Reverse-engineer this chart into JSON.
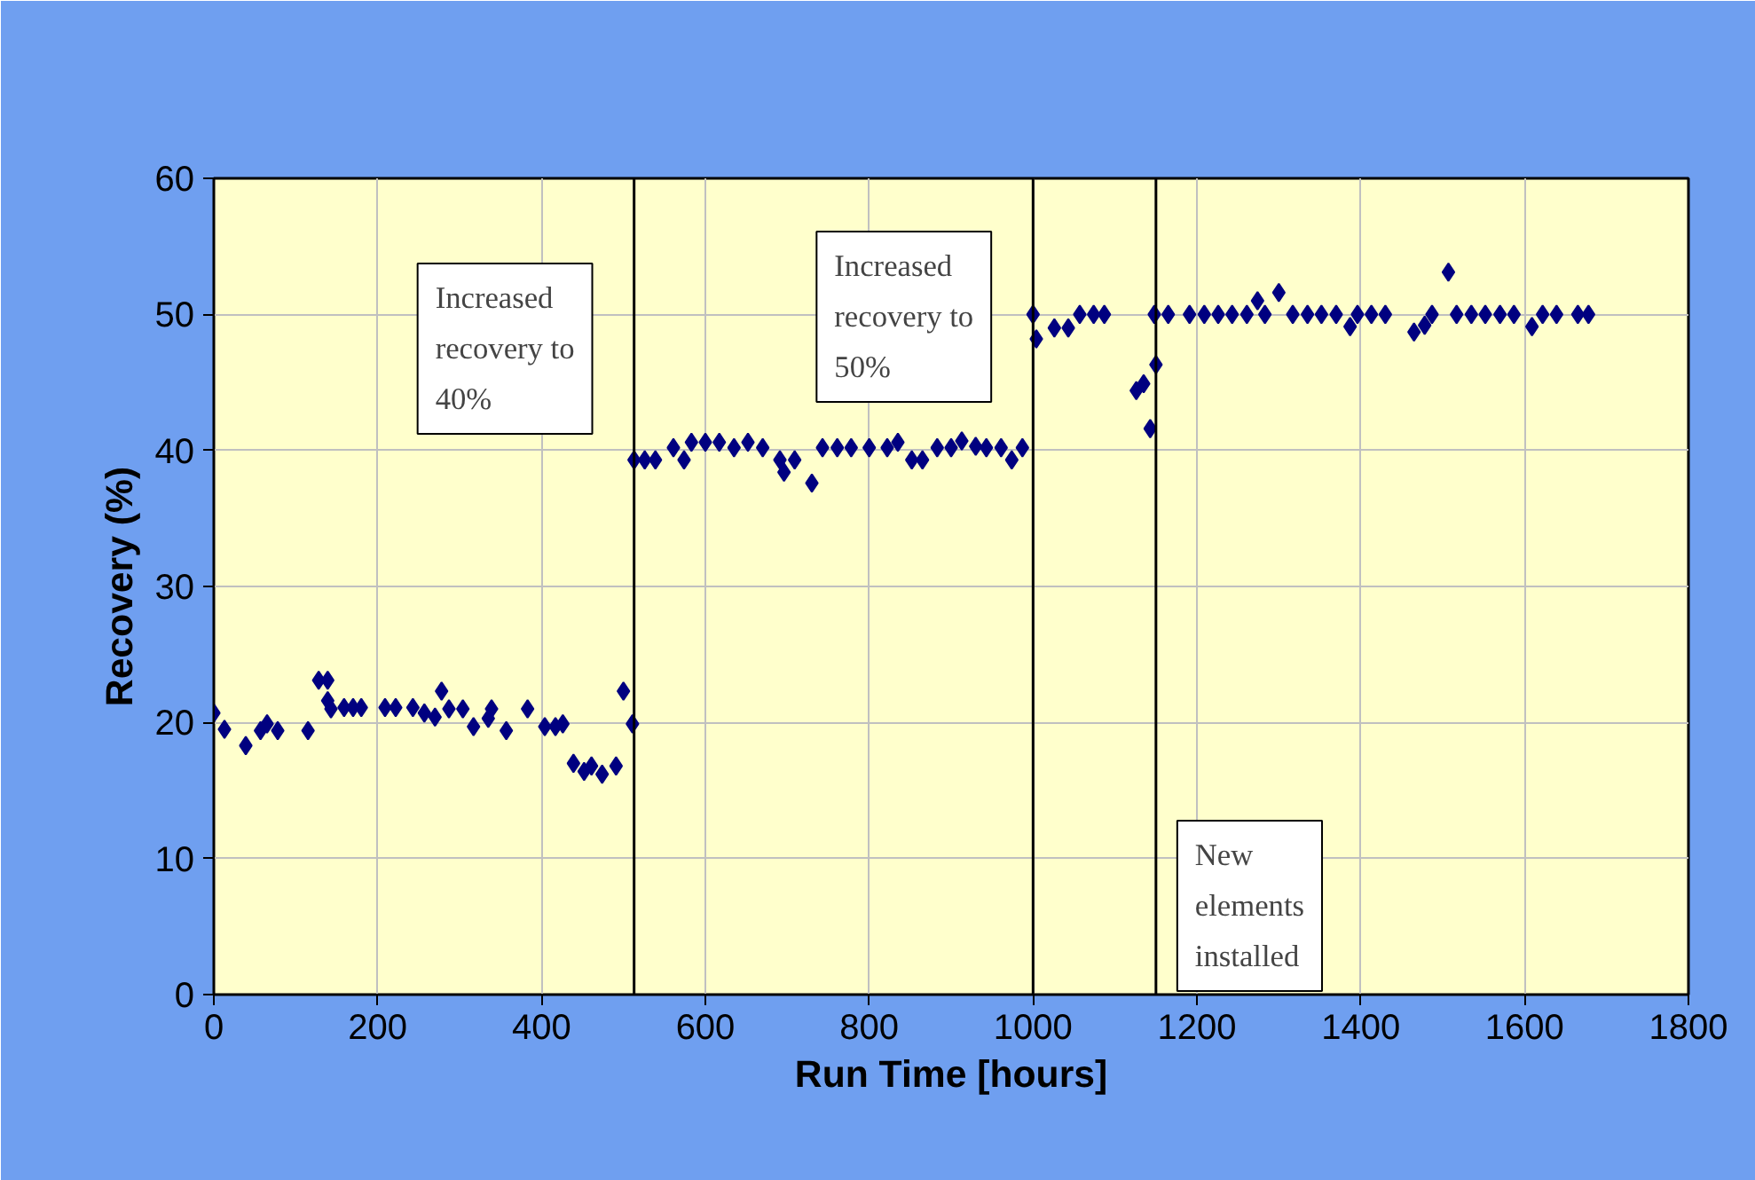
{
  "chart_data": {
    "type": "scatter",
    "xlabel": "Run Time [hours]",
    "ylabel": "Recovery (%)",
    "xlim": [
      0,
      1800
    ],
    "xticks": [
      0,
      200,
      400,
      600,
      800,
      1000,
      1200,
      1400,
      1600,
      1800
    ],
    "ylim": [
      0,
      60
    ],
    "yticks": [
      0,
      10,
      20,
      30,
      40,
      50,
      60
    ],
    "grid": true,
    "marker": "diamond",
    "series": [
      {
        "color": "#000080",
        "x": [
          0,
          13,
          39,
          57,
          65,
          78,
          115,
          128,
          139,
          139,
          143,
          159,
          170,
          180,
          209,
          222,
          243,
          257,
          270,
          278,
          287,
          304,
          317,
          335,
          339,
          357,
          383,
          404,
          417,
          426,
          439,
          452,
          461,
          474,
          491,
          500,
          511,
          513,
          526,
          539,
          561,
          574,
          583,
          600,
          617,
          635,
          652,
          670,
          691,
          696,
          709,
          730,
          743,
          761,
          778,
          800,
          822,
          835,
          852,
          865,
          883,
          900,
          913,
          930,
          943,
          961,
          974,
          987,
          1000,
          1004,
          1026,
          1043,
          1057,
          1074,
          1087,
          1126,
          1135,
          1143,
          1148,
          1150,
          1165,
          1191,
          1209,
          1226,
          1243,
          1261,
          1274,
          1283,
          1300,
          1317,
          1335,
          1352,
          1370,
          1387,
          1396,
          1413,
          1430,
          1465,
          1478,
          1487,
          1507,
          1517,
          1535,
          1552,
          1570,
          1587,
          1609,
          1622,
          1639,
          1665,
          1678
        ],
        "values": [
          20.7,
          19.5,
          18.3,
          19.4,
          19.9,
          19.4,
          19.4,
          23.1,
          23.1,
          21.6,
          21.0,
          21.1,
          21.1,
          21.1,
          21.1,
          21.1,
          21.1,
          20.7,
          20.4,
          22.3,
          21.0,
          21.0,
          19.7,
          20.3,
          21.0,
          19.4,
          21.0,
          19.7,
          19.7,
          19.9,
          17.0,
          16.4,
          16.8,
          16.2,
          16.8,
          22.3,
          19.9,
          39.3,
          39.3,
          39.3,
          40.2,
          39.3,
          40.6,
          40.6,
          40.6,
          40.2,
          40.6,
          40.2,
          39.3,
          38.4,
          39.3,
          37.6,
          40.2,
          40.2,
          40.2,
          40.2,
          40.2,
          40.6,
          39.3,
          39.3,
          40.2,
          40.2,
          40.7,
          40.3,
          40.2,
          40.2,
          39.3,
          40.2,
          50.0,
          48.2,
          49.0,
          49.0,
          50.0,
          50.0,
          50.0,
          44.4,
          44.9,
          41.6,
          50.0,
          46.3,
          50.0,
          50.0,
          50.0,
          50.0,
          50.0,
          50.0,
          51.0,
          50.0,
          51.6,
          50.0,
          50.0,
          50.0,
          50.0,
          49.1,
          50.0,
          50.0,
          50.0,
          48.7,
          49.2,
          50.0,
          53.1,
          50.0,
          50.0,
          50.0,
          50.0,
          50.0,
          49.1,
          50.0,
          50.0,
          50.0,
          50.0
        ]
      }
    ],
    "ref_lines": [
      {
        "axis": "x",
        "value": 513,
        "label": "Increased recovery to 40%",
        "color": "#000000"
      },
      {
        "axis": "x",
        "value": 1000,
        "label": "Increased recovery to 50%",
        "color": "#000000"
      },
      {
        "axis": "x",
        "value": 1150,
        "label": "New elements installed",
        "color": "#000000"
      }
    ]
  }
}
